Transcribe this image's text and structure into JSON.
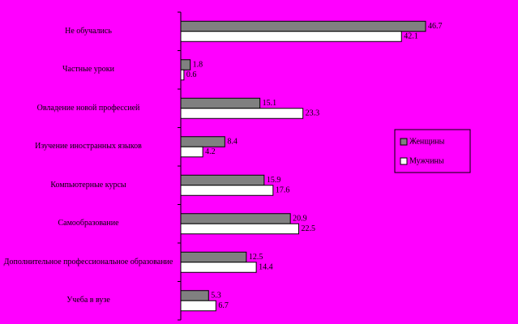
{
  "chart_data": {
    "type": "bar",
    "orientation": "horizontal",
    "categories": [
      "Не обучались",
      "Частные уроки",
      "Овладение новой профессией",
      "Изучение иностранных языков",
      "Компьютерные курсы",
      "Самообразование",
      "Дополнительное профессиональное образование",
      "Учеба в вузе"
    ],
    "series": [
      {
        "name": "Женщины",
        "color": "#808080",
        "values": [
          46.7,
          1.8,
          15.1,
          8.4,
          15.9,
          20.9,
          12.5,
          5.3
        ]
      },
      {
        "name": "Мужчины",
        "color": "#ffffff",
        "values": [
          42.1,
          0.6,
          23.3,
          4.2,
          17.6,
          22.5,
          14.4,
          6.7
        ]
      }
    ],
    "legend": "right"
  }
}
